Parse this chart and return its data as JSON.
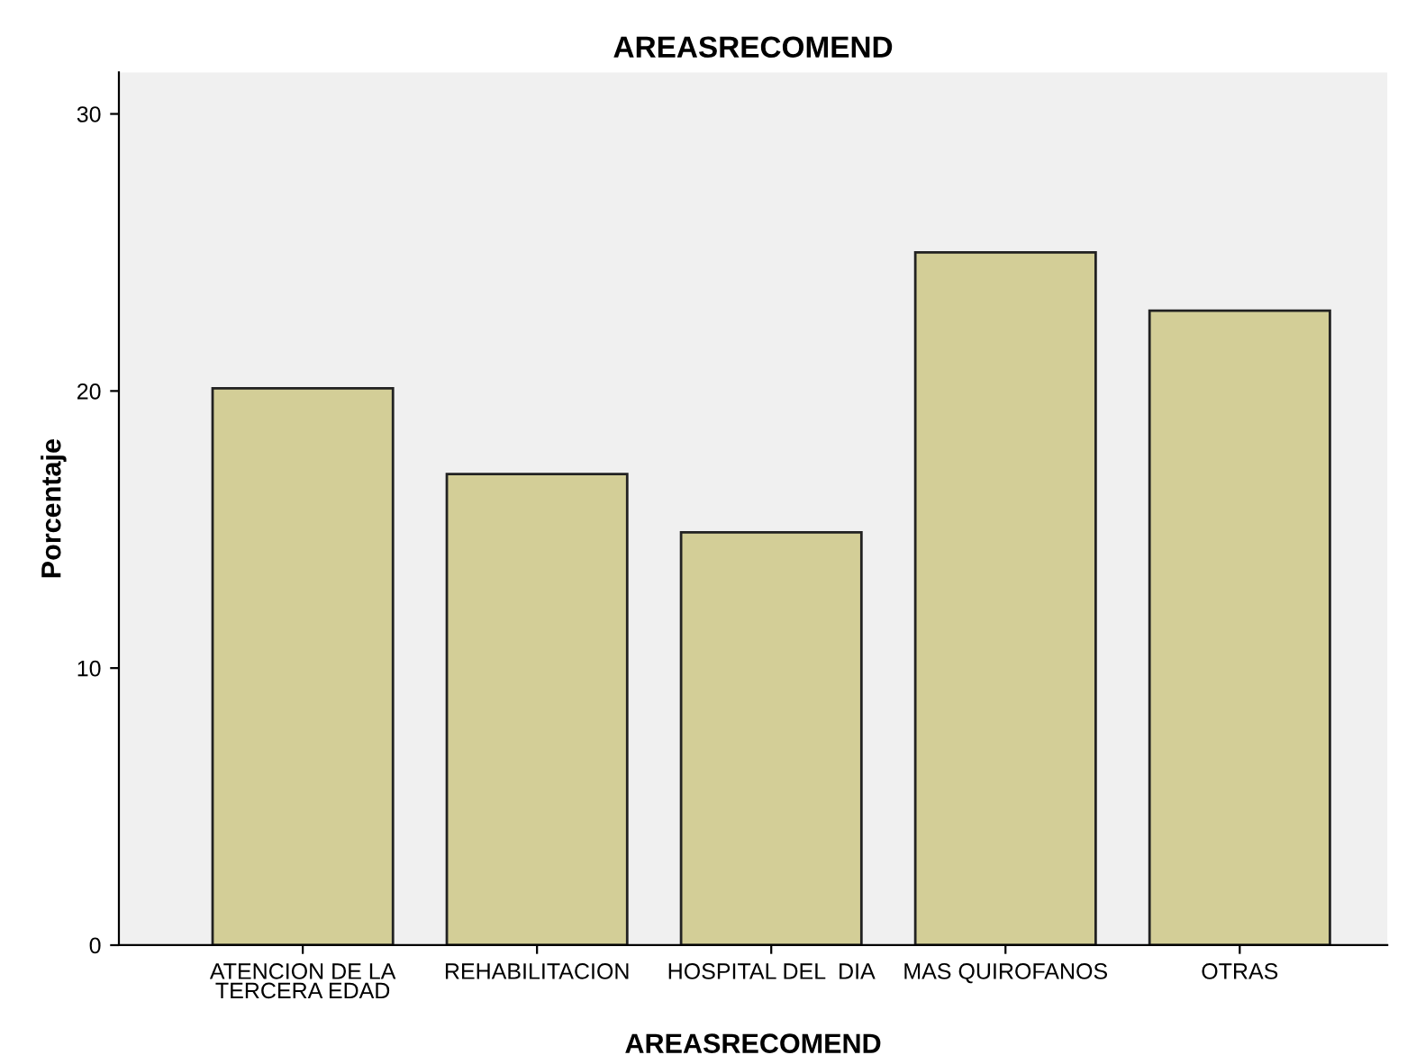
{
  "chart_data": {
    "type": "bar",
    "title": "AREASRECOMEND",
    "xlabel": "AREASRECOMEND",
    "ylabel": "Porcentaje",
    "categories": [
      "ATENCION DE LA\nTERCERA EDAD",
      "REHABILITACION",
      "HOSPITAL DEL  DIA",
      "MAS QUIROFANOS",
      "OTRAS"
    ],
    "values": [
      20.1,
      17.0,
      14.9,
      25.0,
      22.9
    ],
    "color": "#d3ce97",
    "ylim": [
      0,
      31.5
    ],
    "yticks": [
      0,
      10,
      20,
      30
    ],
    "grid": false
  }
}
